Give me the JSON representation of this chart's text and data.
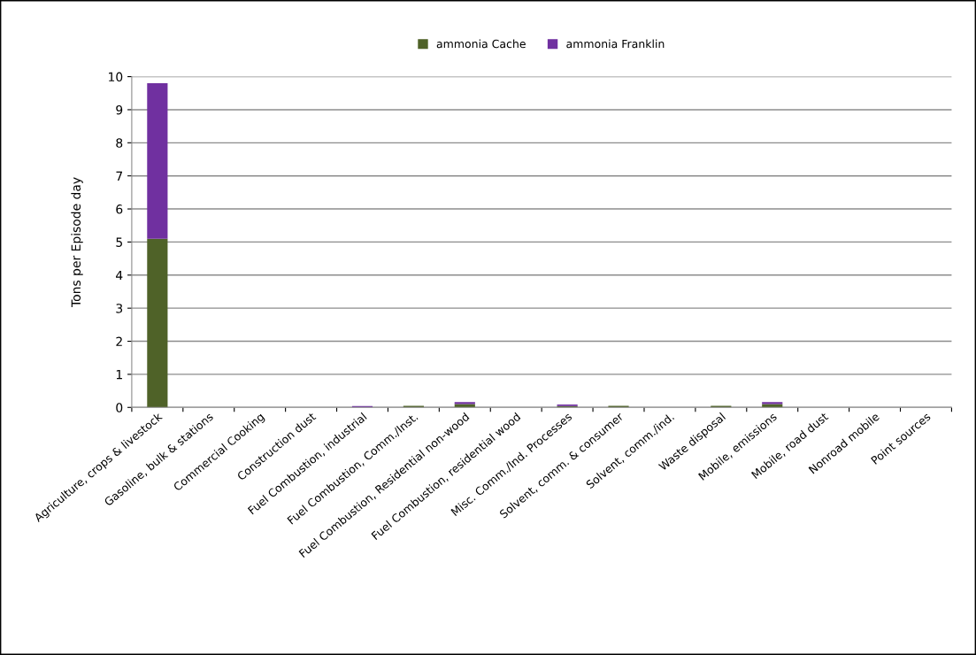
{
  "chart_data": {
    "type": "bar",
    "stacked": true,
    "ylabel": "Tons per Episode day",
    "categories": [
      "Agriculture, crops & livestock",
      "Gasoline, bulk & stations",
      "Commercial Cooking",
      "Construction dust",
      "Fuel Combustion, industrial",
      "Fuel Combustion, Comm./Inst.",
      "Fuel Combustion, Residential non-wood",
      "Fuel Combustion, residential wood",
      "Misc. Comm./Ind. Processes",
      "Solvent, comm. & consumer",
      "Solvent, comm./ind.",
      "Waste disposal",
      "Mobile, emissions",
      "Mobile, road dust",
      "Nonroad mobile",
      "Point sources"
    ],
    "series": [
      {
        "name": "ammonia Cache",
        "color": "#4f6228",
        "values": [
          5.1,
          0,
          0,
          0,
          0,
          0.05,
          0.1,
          0,
          0.04,
          0.05,
          0,
          0.05,
          0.1,
          0,
          0,
          0
        ]
      },
      {
        "name": "ammonia Franklin",
        "color": "#7030a0",
        "values": [
          4.7,
          0,
          0,
          0,
          0.04,
          0,
          0.06,
          0,
          0.05,
          0,
          0,
          0,
          0.06,
          0,
          0,
          0
        ]
      }
    ],
    "ylim": [
      0,
      10
    ],
    "yticks": [
      0,
      1,
      2,
      3,
      4,
      5,
      6,
      7,
      8,
      9,
      10
    ],
    "grid": "y",
    "legend": "top"
  }
}
